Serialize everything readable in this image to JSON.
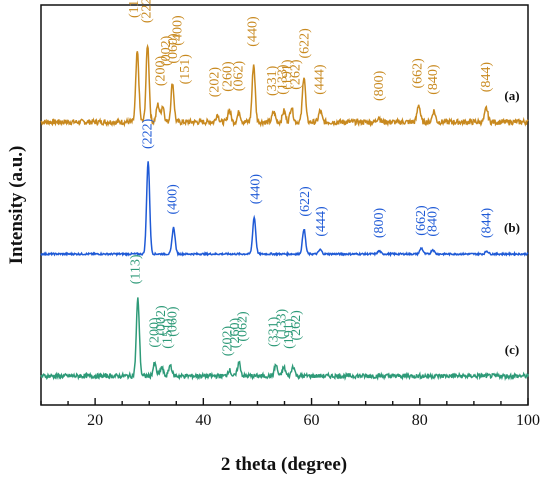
{
  "chart_data": {
    "type": "line",
    "xlabel": "2 theta (degree)",
    "ylabel": "Intensity (a.u.)",
    "xlim": [
      10,
      100
    ],
    "x_ticks": [
      20,
      40,
      60,
      80,
      100
    ],
    "grid": false,
    "series": [
      {
        "name": "(a)",
        "color": "#c8891f",
        "baseline": 0.0,
        "noise": 0.22,
        "peaks": [
          {
            "x": 27.8,
            "y": 5.6
          },
          {
            "x": 29.7,
            "y": 6.2
          },
          {
            "x": 31.6,
            "y": 1.4
          },
          {
            "x": 32.5,
            "y": 1.3
          },
          {
            "x": 34.3,
            "y": 3.1
          },
          {
            "x": 42.6,
            "y": 0.6
          },
          {
            "x": 44.8,
            "y": 1.0
          },
          {
            "x": 46.6,
            "y": 0.8
          },
          {
            "x": 49.3,
            "y": 4.6
          },
          {
            "x": 53.0,
            "y": 0.8
          },
          {
            "x": 54.9,
            "y": 0.9
          },
          {
            "x": 56.3,
            "y": 1.2
          },
          {
            "x": 58.6,
            "y": 3.7
          },
          {
            "x": 61.6,
            "y": 0.9
          },
          {
            "x": 72.4,
            "y": 0.4
          },
          {
            "x": 79.8,
            "y": 1.4
          },
          {
            "x": 82.6,
            "y": 0.9
          },
          {
            "x": 92.3,
            "y": 1.1
          }
        ],
        "labels": [
          {
            "text": "(113)",
            "x": 27.3,
            "h": 4.0
          },
          {
            "text": "(222)",
            "x": 29.6,
            "h": 1.9
          },
          {
            "text": "(200)",
            "x": 32.2,
            "h": 1.4
          },
          {
            "text": "(002)",
            "x": 33.2,
            "h": 1.2
          },
          {
            "text": "(060)",
            "x": 34.5,
            "h": 1.6
          },
          {
            "text": "(400)",
            "x": 35.3,
            "h": 4.6
          },
          {
            "text": "(151)",
            "x": 36.7,
            "h": 4.6
          },
          {
            "text": "(202)",
            "x": 42.2,
            "h": 1.2
          },
          {
            "text": "(260)",
            "x": 44.6,
            "h": 1.3
          },
          {
            "text": "(062)",
            "x": 46.6,
            "h": 1.8
          },
          {
            "text": "(440)",
            "x": 49.2,
            "h": 1.3
          },
          {
            "text": "(331)",
            "x": 52.8,
            "h": 1.0
          },
          {
            "text": "(133)",
            "x": 54.7,
            "h": 1.0
          },
          {
            "text": "(191)",
            "x": 55.6,
            "h": 1.2
          },
          {
            "text": "(262)",
            "x": 57.1,
            "h": 1.2
          },
          {
            "text": "(622)",
            "x": 58.8,
            "h": 1.2
          },
          {
            "text": "(444)",
            "x": 61.6,
            "h": 1.0
          },
          {
            "text": "(800)",
            "x": 72.6,
            "h": 1.0
          },
          {
            "text": "(662)",
            "x": 79.7,
            "h": 1.0
          },
          {
            "text": "(840)",
            "x": 82.5,
            "h": 1.0
          },
          {
            "text": "(844)",
            "x": 92.3,
            "h": 1.0
          }
        ]
      },
      {
        "name": "(b)",
        "color": "#1f5ad6",
        "baseline": 0.0,
        "noise": 0.06,
        "peaks": [
          {
            "x": 29.8,
            "y": 6.3
          },
          {
            "x": 34.5,
            "y": 1.8
          },
          {
            "x": 49.4,
            "y": 2.5
          },
          {
            "x": 58.6,
            "y": 1.7
          },
          {
            "x": 61.6,
            "y": 0.3
          },
          {
            "x": 72.5,
            "y": 0.2
          },
          {
            "x": 80.3,
            "y": 0.4
          },
          {
            "x": 82.4,
            "y": 0.3
          },
          {
            "x": 92.4,
            "y": 0.2
          }
        ],
        "labels": [
          {
            "text": "(222)",
            "x": 29.8,
            "h": 0.4
          },
          {
            "text": "(400)",
            "x": 34.4,
            "h": 0.5
          },
          {
            "text": "(440)",
            "x": 49.7,
            "h": 0.5
          },
          {
            "text": "(622)",
            "x": 58.9,
            "h": 0.4
          },
          {
            "text": "(444)",
            "x": 61.8,
            "h": 0.5
          },
          {
            "text": "(800)",
            "x": 72.6,
            "h": 0.5
          },
          {
            "text": "(662)",
            "x": 80.3,
            "h": 0.4
          },
          {
            "text": "(840)",
            "x": 82.4,
            "h": 0.5
          },
          {
            "text": "(844)",
            "x": 92.4,
            "h": 0.5
          }
        ]
      },
      {
        "name": "(c)",
        "color": "#2e9a78",
        "baseline": 0.0,
        "noise": 0.18,
        "peaks": [
          {
            "x": 27.9,
            "y": 6.2
          },
          {
            "x": 31.0,
            "y": 1.0
          },
          {
            "x": 32.3,
            "y": 0.7
          },
          {
            "x": 33.9,
            "y": 0.9
          },
          {
            "x": 44.8,
            "y": 0.5
          },
          {
            "x": 46.6,
            "y": 1.1
          },
          {
            "x": 53.4,
            "y": 0.9
          },
          {
            "x": 54.9,
            "y": 0.7
          },
          {
            "x": 56.6,
            "y": 0.8
          }
        ],
        "labels": [
          {
            "text": "(113)",
            "x": 27.6,
            "h": 0.8
          },
          {
            "text": "(200)",
            "x": 31.1,
            "h": 1.0
          },
          {
            "text": "(002)",
            "x": 32.3,
            "h": 3.0
          },
          {
            "text": "(151)",
            "x": 33.5,
            "h": 1.0
          },
          {
            "text": "(060)",
            "x": 34.4,
            "h": 3.0
          },
          {
            "text": "(202)",
            "x": 44.6,
            "h": 0.6
          },
          {
            "text": "(260)",
            "x": 45.9,
            "h": 0.7
          },
          {
            "text": "(062)",
            "x": 47.3,
            "h": 1.8
          },
          {
            "text": "(331)",
            "x": 53.1,
            "h": 1.3
          },
          {
            "text": "(133)",
            "x": 54.5,
            "h": 2.6
          },
          {
            "text": "(191)",
            "x": 55.9,
            "h": 1.2
          },
          {
            "text": "(262)",
            "x": 57.2,
            "h": 2.6
          }
        ]
      }
    ]
  }
}
